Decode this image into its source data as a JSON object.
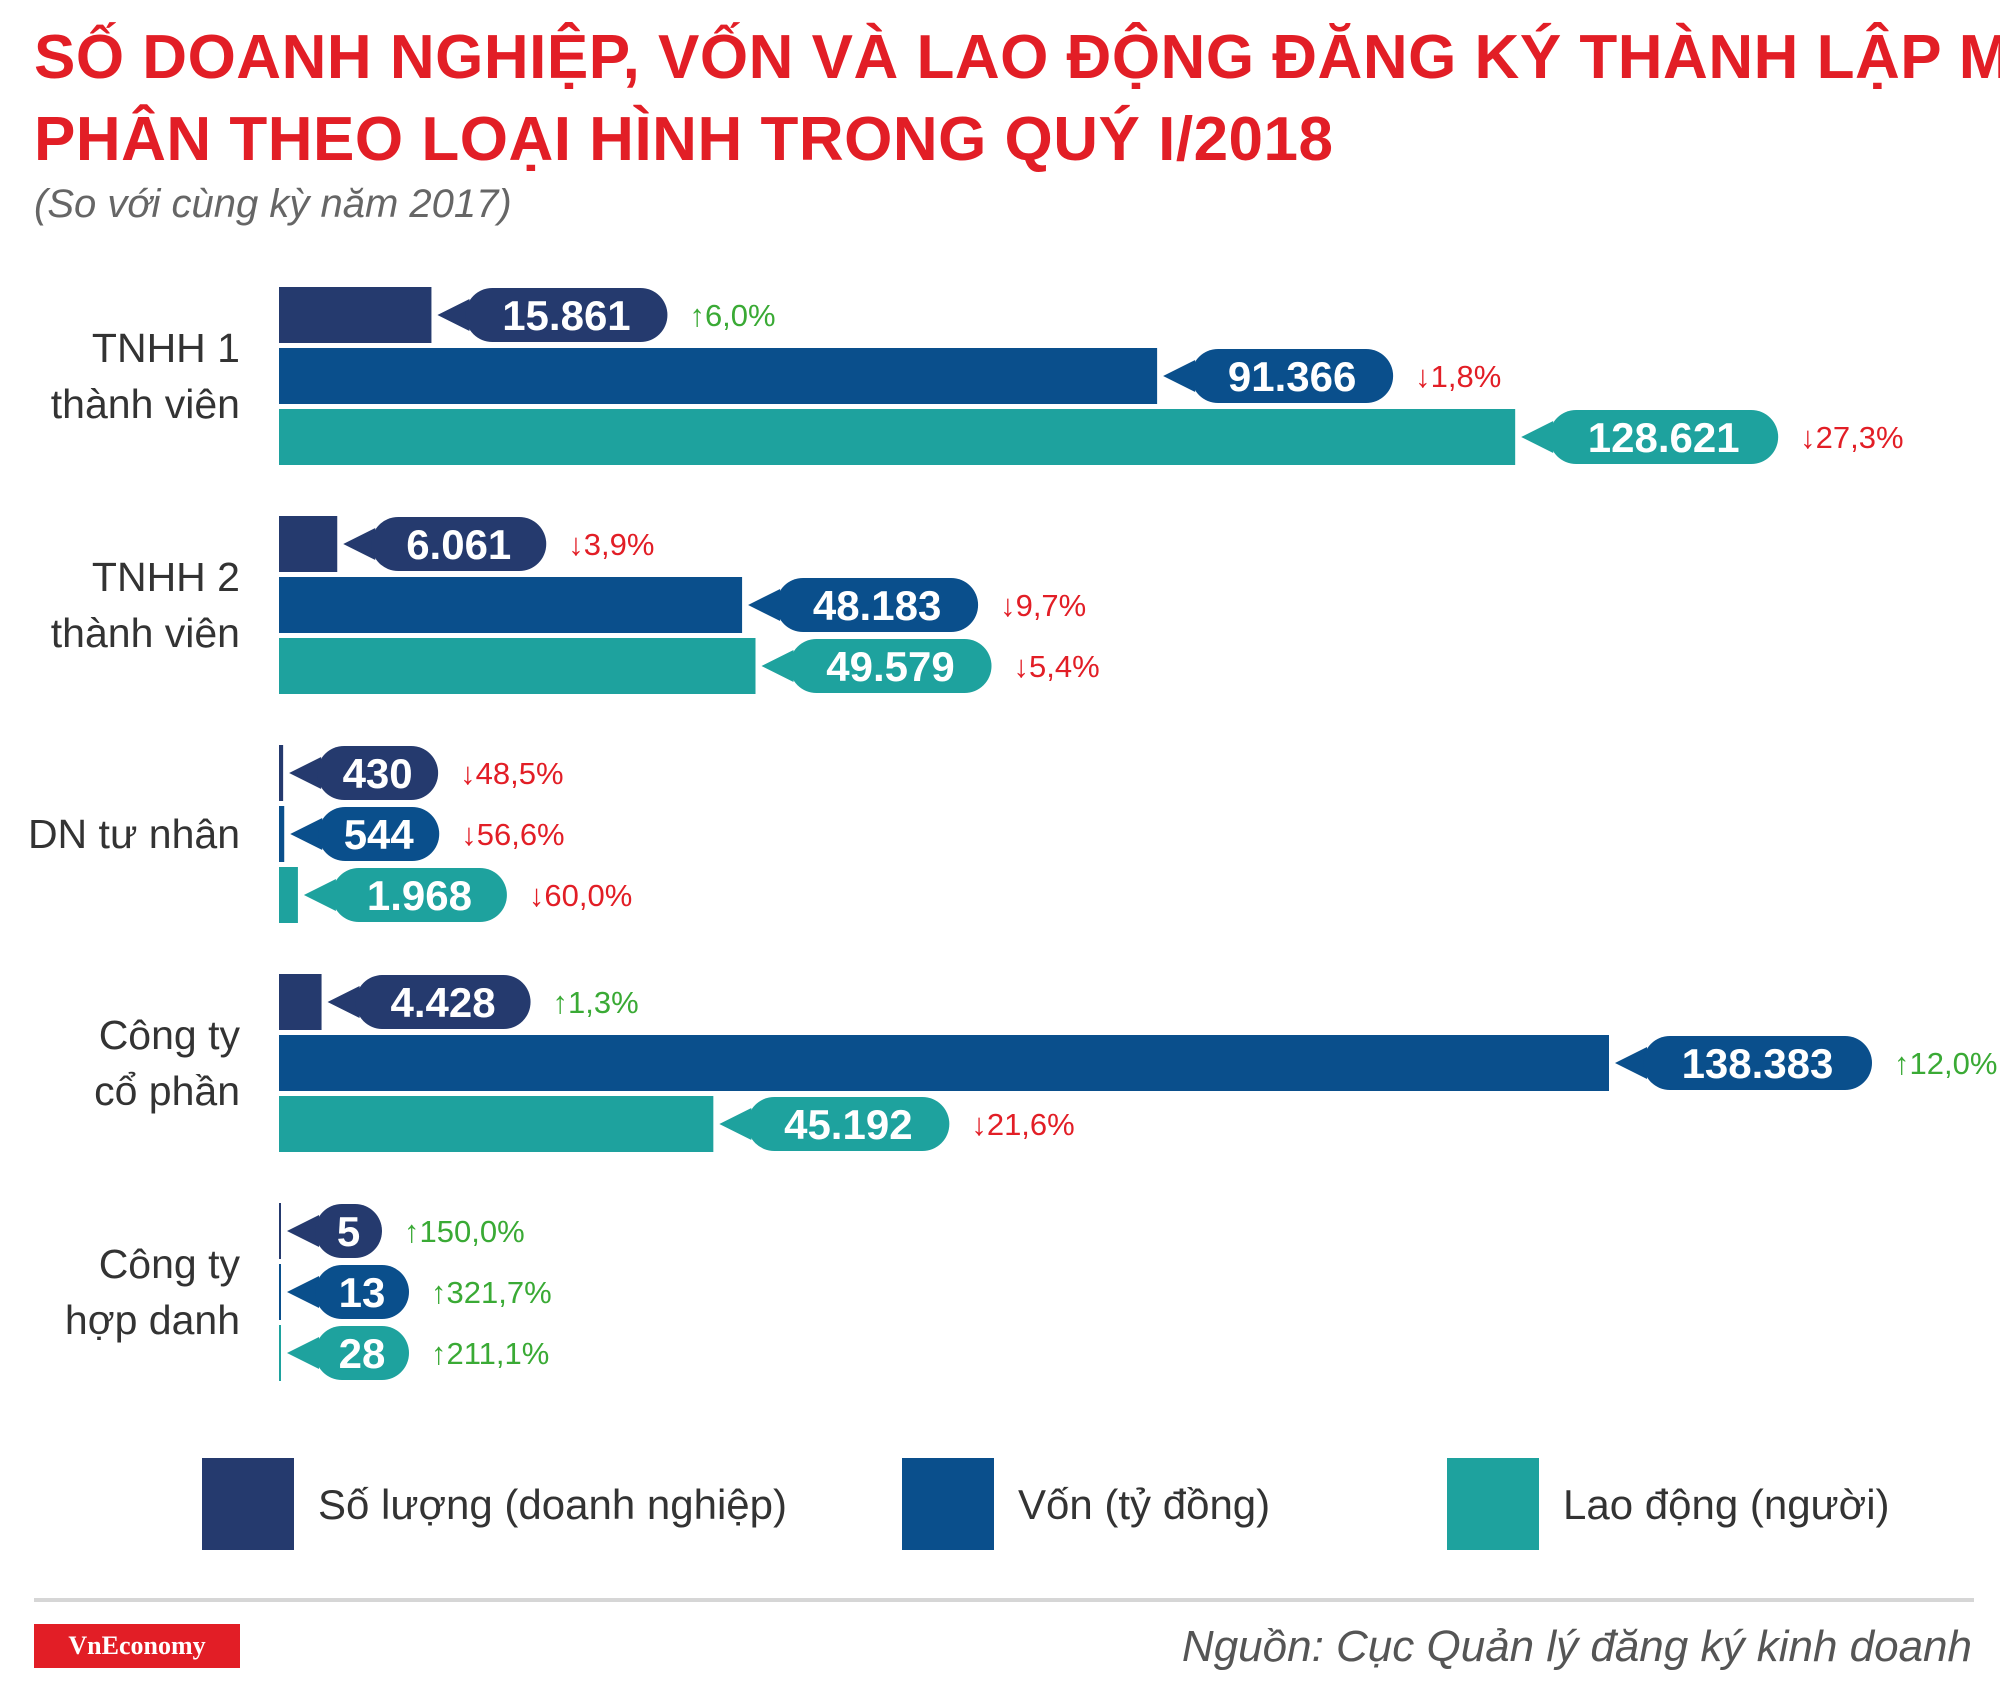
{
  "title_line1": "SỐ DOANH NGHIỆP, VỐN VÀ LAO ĐỘNG ĐĂNG KÝ THÀNH LẬP MỚI",
  "title_line2": "PHÂN THEO LOẠI HÌNH TRONG QUÝ I/2018",
  "subtitle": "(So với cùng kỳ năm 2017)",
  "source": "Nguồn: Cục Quản lý đăng ký kinh doanh",
  "logo_text": "VnEconomy",
  "colors": {
    "title": "#e21e26",
    "so_luong": "#253a6e",
    "von": "#0a4f8c",
    "lao_dong": "#1ea29e",
    "up": "#3aaa35",
    "down": "#e21e26",
    "label_text": "#333333",
    "legend_text": "#333333"
  },
  "chart_data": {
    "type": "bar",
    "orientation": "horizontal",
    "categories": [
      [
        "TNHH 1",
        "thành viên"
      ],
      [
        "TNHH 2",
        "thành viên"
      ],
      [
        "DN tư nhân"
      ],
      [
        "Công ty",
        "cổ phần"
      ],
      [
        "Công ty",
        "hợp danh"
      ]
    ],
    "series": [
      {
        "name": "Số lượng (doanh nghiệp)",
        "color_key": "so_luong",
        "values": [
          15861,
          6061,
          430,
          4428,
          5
        ],
        "labels": [
          "15.861",
          "6.061",
          "430",
          "4.428",
          "5"
        ],
        "changes": [
          {
            "dir": "up",
            "text": "6,0%"
          },
          {
            "dir": "down",
            "text": "3,9%"
          },
          {
            "dir": "down",
            "text": "48,5%"
          },
          {
            "dir": "up",
            "text": "1,3%"
          },
          {
            "dir": "up",
            "text": "150,0%"
          }
        ]
      },
      {
        "name": "Vốn (tỷ đồng)",
        "color_key": "von",
        "values": [
          91366,
          48183,
          544,
          138383,
          13
        ],
        "labels": [
          "91.366",
          "48.183",
          "544",
          "138.383",
          "13"
        ],
        "changes": [
          {
            "dir": "down",
            "text": "1,8%"
          },
          {
            "dir": "down",
            "text": "9,7%"
          },
          {
            "dir": "down",
            "text": "56,6%"
          },
          {
            "dir": "up",
            "text": "12,0%"
          },
          {
            "dir": "up",
            "text": "321,7%"
          }
        ]
      },
      {
        "name": "Lao động (người)",
        "color_key": "lao_dong",
        "values": [
          128621,
          49579,
          1968,
          45192,
          28
        ],
        "labels": [
          "128.621",
          "49.579",
          "1.968",
          "45.192",
          "28"
        ],
        "changes": [
          {
            "dir": "down",
            "text": "27,3%"
          },
          {
            "dir": "down",
            "text": "5,4%"
          },
          {
            "dir": "down",
            "text": "60,0%"
          },
          {
            "dir": "down",
            "text": "21,6%"
          },
          {
            "dir": "up",
            "text": "211,1%"
          }
        ]
      }
    ]
  }
}
